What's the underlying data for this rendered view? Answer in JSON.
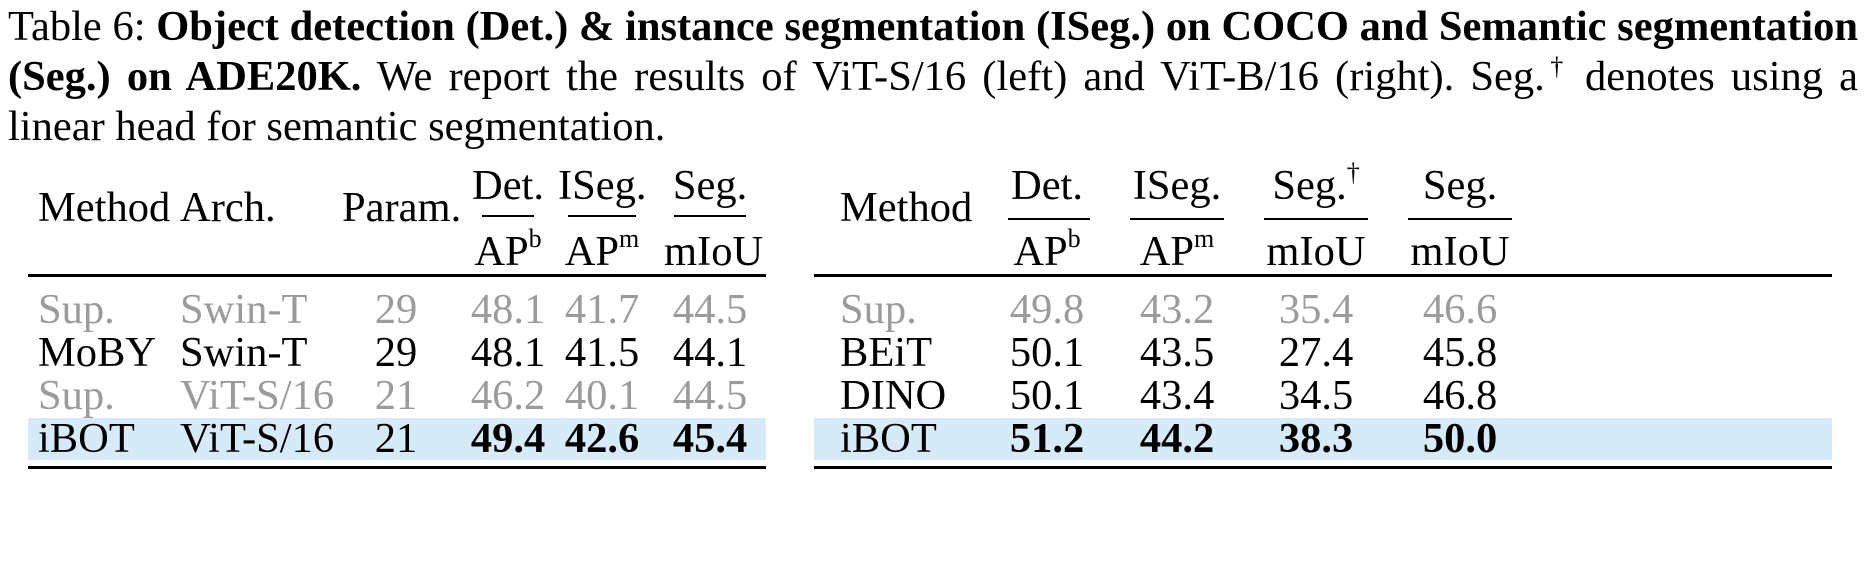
{
  "caption": {
    "label": "Table 6: ",
    "bold": "Object detection (Det.)  & instance segmentation (ISeg.)  on COCO and Semantic segmentation (Seg.)  on ADE20K.",
    "text": " We report the results of ViT-S/16 (left) and ViT-B/16 (right). Seg.",
    "dagger": "†",
    "text2": " denotes using a linear head for semantic segmentation."
  },
  "left_table": {
    "headers": {
      "method": "Method",
      "arch": "Arch.",
      "param": "Param.",
      "det": "Det.",
      "iseg": "ISeg.",
      "seg": "Seg.",
      "ap": "AP",
      "ap_b_sup": "b",
      "ap_m_sup": "m",
      "miou": "mIoU"
    },
    "rows": [
      {
        "method": "Sup.",
        "arch": "Swin-T",
        "param": "29",
        "det": "48.1",
        "iseg": "41.7",
        "seg": "44.5"
      },
      {
        "method": "MoBY",
        "arch": "Swin-T",
        "param": "29",
        "det": "48.1",
        "iseg": "41.5",
        "seg": "44.1"
      },
      {
        "method": "Sup.",
        "arch": "ViT-S/16",
        "param": "21",
        "det": "46.2",
        "iseg": "40.1",
        "seg": "44.5"
      },
      {
        "method": "iBOT",
        "arch": "ViT-S/16",
        "param": "21",
        "det": "49.4",
        "iseg": "42.6",
        "seg": "45.4"
      }
    ]
  },
  "right_table": {
    "headers": {
      "method": "Method",
      "det": "Det.",
      "iseg": "ISeg.",
      "seg_dagger": "Seg.",
      "dagger": "†",
      "seg": "Seg.",
      "ap": "AP",
      "ap_b_sup": "b",
      "ap_m_sup": "m",
      "miou": "mIoU"
    },
    "rows": [
      {
        "method": "Sup.",
        "det": "49.8",
        "iseg": "43.2",
        "seg_dagger": "35.4",
        "seg": "46.6"
      },
      {
        "method": "BEiT",
        "det": "50.1",
        "iseg": "43.5",
        "seg_dagger": "27.4",
        "seg": "45.8"
      },
      {
        "method": "DINO",
        "det": "50.1",
        "iseg": "43.4",
        "seg_dagger": "34.5",
        "seg": "46.8"
      },
      {
        "method": "iBOT",
        "det": "51.2",
        "iseg": "44.2",
        "seg_dagger": "38.3",
        "seg": "50.0"
      }
    ]
  },
  "colors": {
    "highlight": "#d7eaf7",
    "gray_text": "#9b9b9b"
  }
}
